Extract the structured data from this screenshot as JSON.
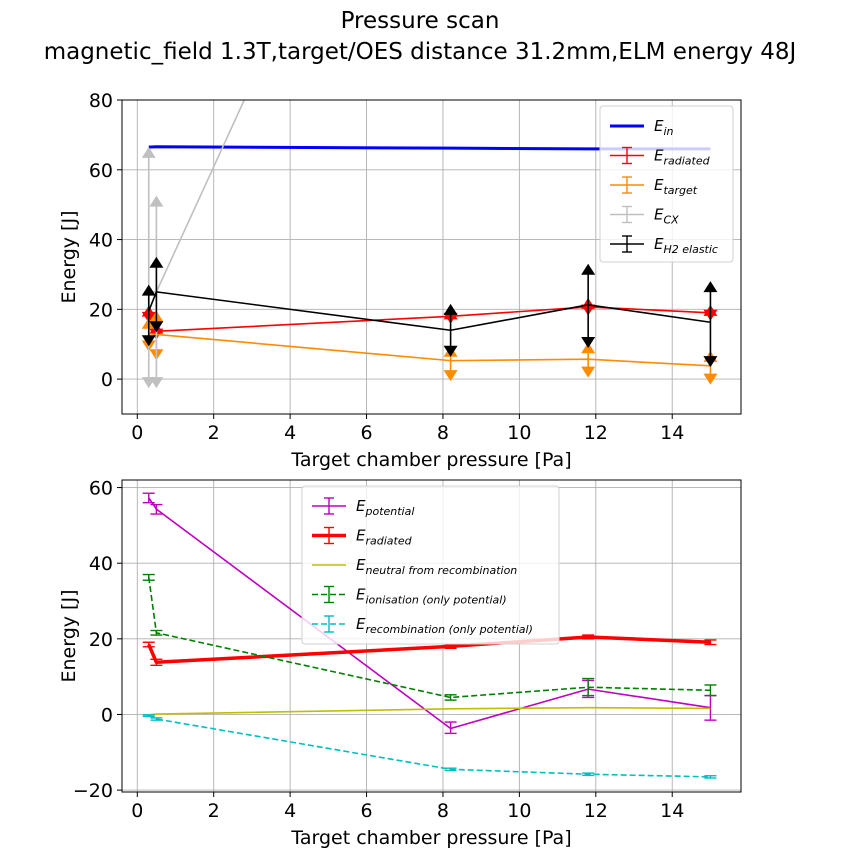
{
  "figure": {
    "title_line1": "Pressure scan",
    "title_line2": "magnetic_field 1.3T,target/OES distance 31.2mm,ELM energy 48J"
  },
  "chart_data": [
    {
      "type": "line",
      "xlabel": "Target chamber pressure [Pa]",
      "ylabel": "Energy [J]",
      "xlim": [
        -0.4,
        15.8
      ],
      "ylim": [
        -10,
        80
      ],
      "xticks": [
        0,
        2,
        4,
        6,
        8,
        10,
        12,
        14
      ],
      "yticks": [
        0,
        20,
        40,
        60,
        80
      ],
      "grid": true,
      "legend_position": "top-right",
      "x": [
        0.3,
        0.5,
        8.2,
        11.8,
        15.0
      ],
      "series": [
        {
          "name": "E",
          "sub": "in",
          "color": "#0000ff",
          "linewidth": 3,
          "x": [
            0.3,
            0.5,
            8.2,
            11.8,
            15.0
          ],
          "values": [
            66.5,
            66.6,
            66.2,
            66.0,
            66.0
          ],
          "errors": null
        },
        {
          "name": "E",
          "sub": "radiated",
          "color": "#ff0000",
          "linewidth": 1.6,
          "x": [
            0.3,
            0.5,
            8.2,
            11.8,
            15.0
          ],
          "values": [
            18.5,
            13.7,
            18.0,
            20.7,
            19.0
          ],
          "lower": [
            17.7,
            12.9,
            17.4,
            19.8,
            18.3
          ],
          "upper": [
            19.5,
            14.6,
            18.7,
            21.7,
            19.7
          ]
        },
        {
          "name": "E",
          "sub": "target",
          "color": "#ff8c00",
          "linewidth": 1.6,
          "x": [
            0.3,
            0.5,
            8.2,
            11.8,
            15.0
          ],
          "values": [
            13.0,
            12.8,
            5.3,
            5.7,
            3.8
          ],
          "lower": [
            9.5,
            7.0,
            1.0,
            2.0,
            0.0
          ],
          "upper": [
            16.0,
            18.0,
            8.0,
            9.0,
            6.5
          ]
        },
        {
          "name": "E",
          "sub": "CX",
          "color": "#c0c0c0",
          "linewidth": 1.6,
          "x": [
            0.3,
            0.5,
            2.8
          ],
          "values": [
            25.0,
            25.0,
            80.0
          ],
          "lower": [
            -1.0,
            -1.0,
            null
          ],
          "upper": [
            65.0,
            51.0,
            null
          ]
        },
        {
          "name": "E",
          "sub": "H2 elastic",
          "color": "#000000",
          "linewidth": 1.6,
          "x": [
            0.3,
            0.5,
            8.2,
            11.8,
            15.0
          ],
          "values": [
            19.5,
            25.0,
            14.0,
            21.3,
            16.3
          ],
          "lower": [
            11.0,
            15.0,
            8.0,
            10.5,
            5.0
          ],
          "upper": [
            25.5,
            33.5,
            20.0,
            31.5,
            26.5
          ]
        }
      ]
    },
    {
      "type": "line",
      "xlabel": "Target chamber pressure [Pa]",
      "ylabel": "Energy [J]",
      "xlim": [
        -0.4,
        15.8
      ],
      "ylim": [
        -20.5,
        62
      ],
      "xticks": [
        0,
        2,
        4,
        6,
        8,
        10,
        12,
        14
      ],
      "yticks": [
        -20,
        0,
        20,
        40,
        60
      ],
      "grid": true,
      "legend_position": "top-center",
      "series": [
        {
          "name": "E",
          "sub": "potential",
          "color": "#bf00bf",
          "linewidth": 1.6,
          "dash": false,
          "x": [
            0.3,
            0.5,
            8.2,
            11.8,
            15.0
          ],
          "values": [
            57.3,
            54.3,
            -3.7,
            6.7,
            1.8
          ],
          "lower": [
            56.0,
            53.0,
            -5.0,
            4.5,
            -1.5
          ],
          "upper": [
            58.5,
            55.5,
            -2.0,
            9.0,
            5.0
          ]
        },
        {
          "name": "E",
          "sub": "radiated",
          "color": "#ff0000",
          "linewidth": 3.5,
          "dash": false,
          "x": [
            0.3,
            0.5,
            8.2,
            11.8,
            15.0
          ],
          "values": [
            18.5,
            13.8,
            18.0,
            20.5,
            19.1
          ],
          "lower": [
            17.9,
            13.0,
            17.5,
            20.0,
            18.5
          ],
          "upper": [
            19.1,
            14.6,
            18.5,
            21.0,
            19.7
          ]
        },
        {
          "name": "E",
          "sub": "neutral from recombination",
          "color": "#bfbf00",
          "linewidth": 1.6,
          "dash": false,
          "x": [
            0.3,
            0.5,
            8.2,
            11.8,
            15.0
          ],
          "values": [
            -0.1,
            0.1,
            1.5,
            1.8,
            1.6
          ],
          "lower": null,
          "upper": null
        },
        {
          "name": "E",
          "sub": "ionisation (only potential)",
          "color": "#008000",
          "linewidth": 1.6,
          "dash": true,
          "x": [
            0.3,
            0.5,
            8.2,
            11.8,
            15.0
          ],
          "values": [
            36.3,
            21.6,
            4.5,
            7.2,
            6.4
          ],
          "lower": [
            35.5,
            21.0,
            3.8,
            5.0,
            5.0
          ],
          "upper": [
            37.0,
            22.2,
            5.2,
            9.5,
            7.8
          ]
        },
        {
          "name": "E",
          "sub": "recombination (only potential)",
          "color": "#00bfbf",
          "linewidth": 1.6,
          "dash": true,
          "x": [
            0.3,
            0.5,
            8.2,
            11.8,
            15.0
          ],
          "values": [
            -0.3,
            -1.2,
            -14.5,
            -15.8,
            -16.5
          ],
          "lower": [
            -0.5,
            -1.5,
            -14.8,
            -16.1,
            -16.8
          ],
          "upper": [
            -0.1,
            -0.9,
            -14.2,
            -15.5,
            -16.2
          ]
        }
      ]
    }
  ]
}
